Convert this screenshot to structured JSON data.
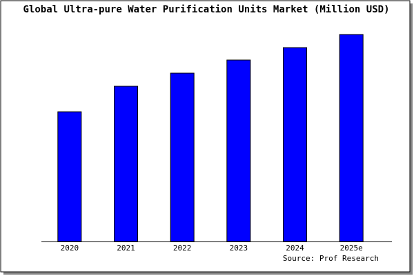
{
  "chart_data": {
    "type": "bar",
    "title": "Global Ultra-pure Water Purification Units Market (Million USD)",
    "categories": [
      "2020",
      "2021",
      "2022",
      "2023",
      "2024",
      "2025e"
    ],
    "values": [
      188,
      225,
      244,
      263,
      281,
      300
    ],
    "color": "#0000ff",
    "ylim": [
      0,
      305
    ],
    "source": "Source: Prof Research"
  }
}
